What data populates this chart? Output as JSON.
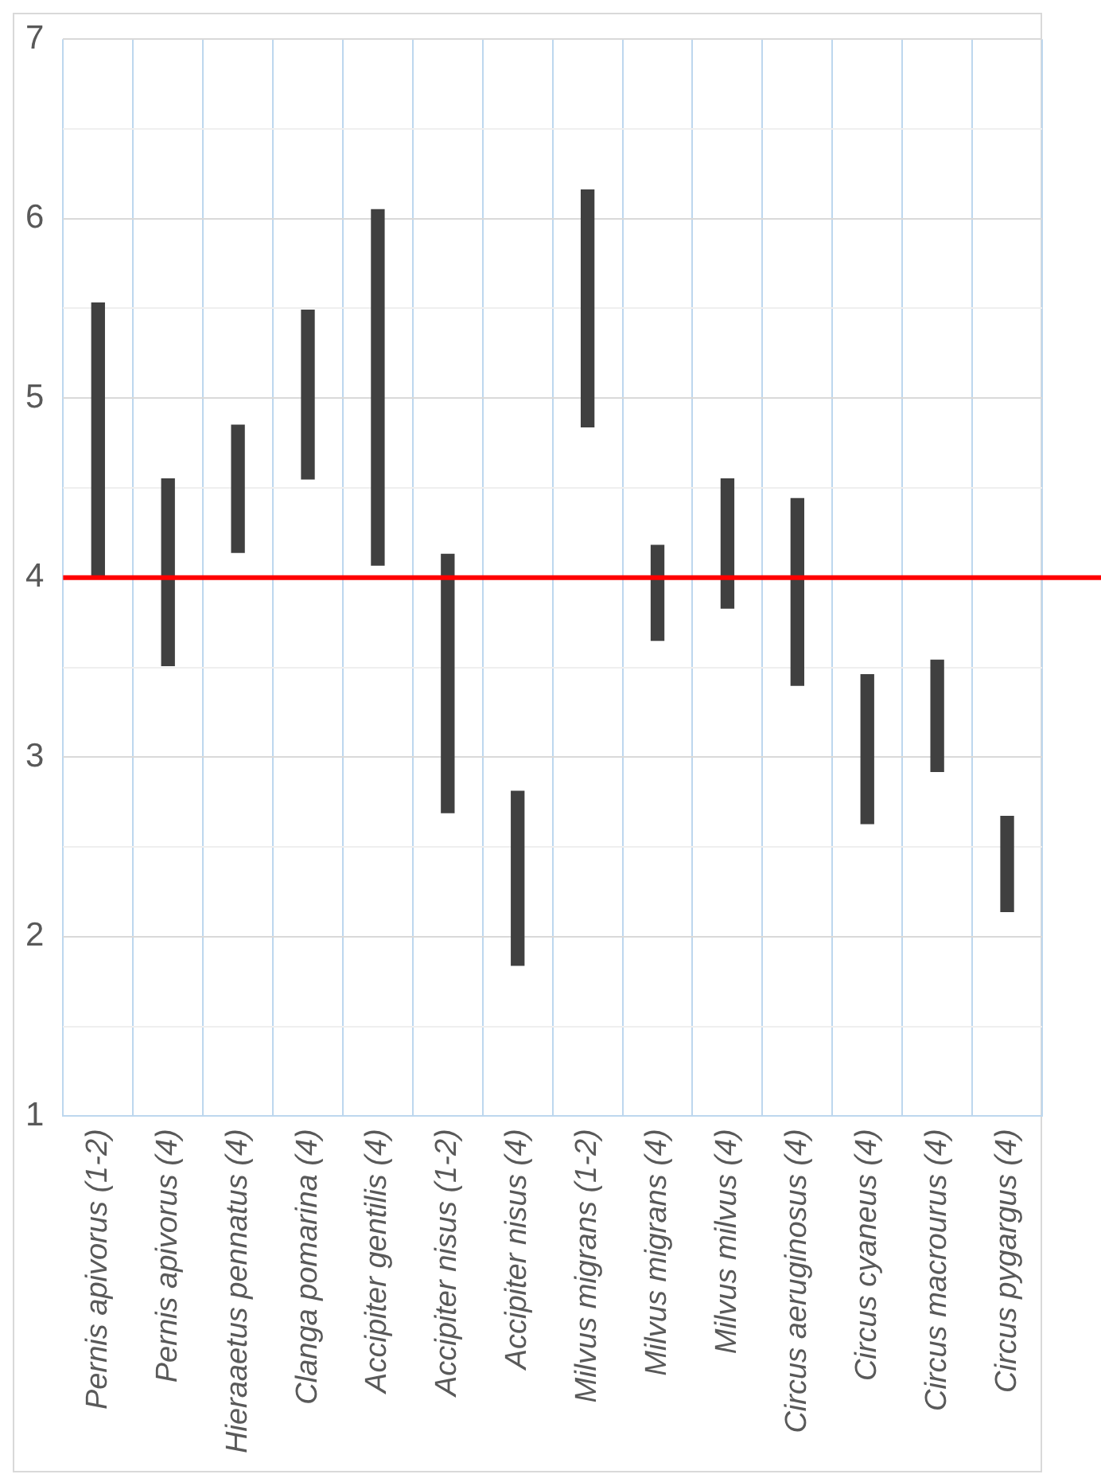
{
  "chart_data": {
    "type": "bar",
    "categories": [
      "Pernis apivorus (1-2)",
      "Pernis apivorus (4)",
      "Hieraaetus pennatus (4)",
      "Clanga pomarina (4)",
      "Accipiter gentilis (4)",
      "Accipiter nisus (1-2)",
      "Accipiter nisus (4)",
      "Milvus migrans (1-2)",
      "Milvus migrans (4)",
      "Milvus milvus (4)",
      "Circus aeruginosus (4)",
      "Circus cyaneus (4)",
      "Circus macrourus (4)",
      "Circus pygargus (4)"
    ],
    "base": [
      4.0,
      3.51,
      4.14,
      4.55,
      4.07,
      2.69,
      1.84,
      4.84,
      3.65,
      3.83,
      3.4,
      2.63,
      2.92,
      2.14
    ],
    "values": [
      1.53,
      1.04,
      0.71,
      0.94,
      1.98,
      1.44,
      0.97,
      1.32,
      0.53,
      0.72,
      1.04,
      0.83,
      0.62,
      0.53
    ],
    "color": "#404040",
    "ylim": [
      1,
      7
    ],
    "yticks": [
      1,
      {
        "value": 1.5,
        "label": null
      },
      2,
      {
        "value": 2.5,
        "label": null
      },
      3,
      {
        "value": 3.5,
        "label": null
      },
      4,
      {
        "value": 4.5,
        "label": null
      },
      5,
      {
        "value": 5.5,
        "label": null
      },
      6,
      {
        "value": 6.5,
        "label": null
      },
      7
    ],
    "grid": true,
    "ref_lines": [
      {
        "axis": "y",
        "value": 4,
        "color": "#ff0000"
      }
    ]
  }
}
